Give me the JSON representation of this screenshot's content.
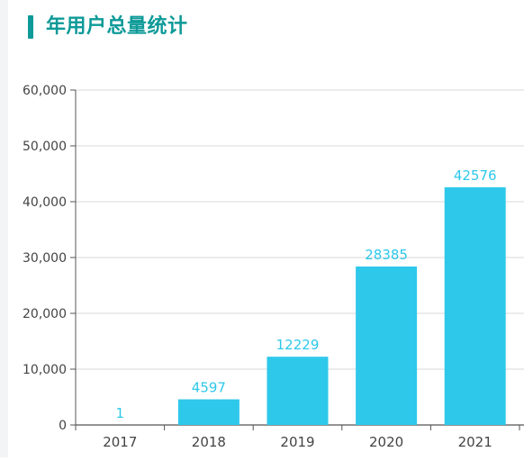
{
  "header": {
    "title": "年用户总量统计",
    "accent_color": "#0e9a98"
  },
  "chart_data": {
    "type": "bar",
    "title": "",
    "xlabel": "",
    "ylabel": "",
    "categories": [
      "2017",
      "2018",
      "2019",
      "2020",
      "2021"
    ],
    "values": [
      1,
      4597,
      12229,
      28385,
      42576
    ],
    "data_labels": [
      "1",
      "4597",
      "12229",
      "28385",
      "42576"
    ],
    "y_ticks": [
      0,
      10000,
      20000,
      30000,
      40000,
      50000,
      60000
    ],
    "y_tick_labels": [
      "0",
      "10,000",
      "20,000",
      "30,000",
      "40,000",
      "50,000",
      "60,000"
    ],
    "ylim": [
      0,
      60000
    ],
    "grid": true,
    "bar_color": "#2ec8ea",
    "label_color": "#2ec8ea"
  }
}
